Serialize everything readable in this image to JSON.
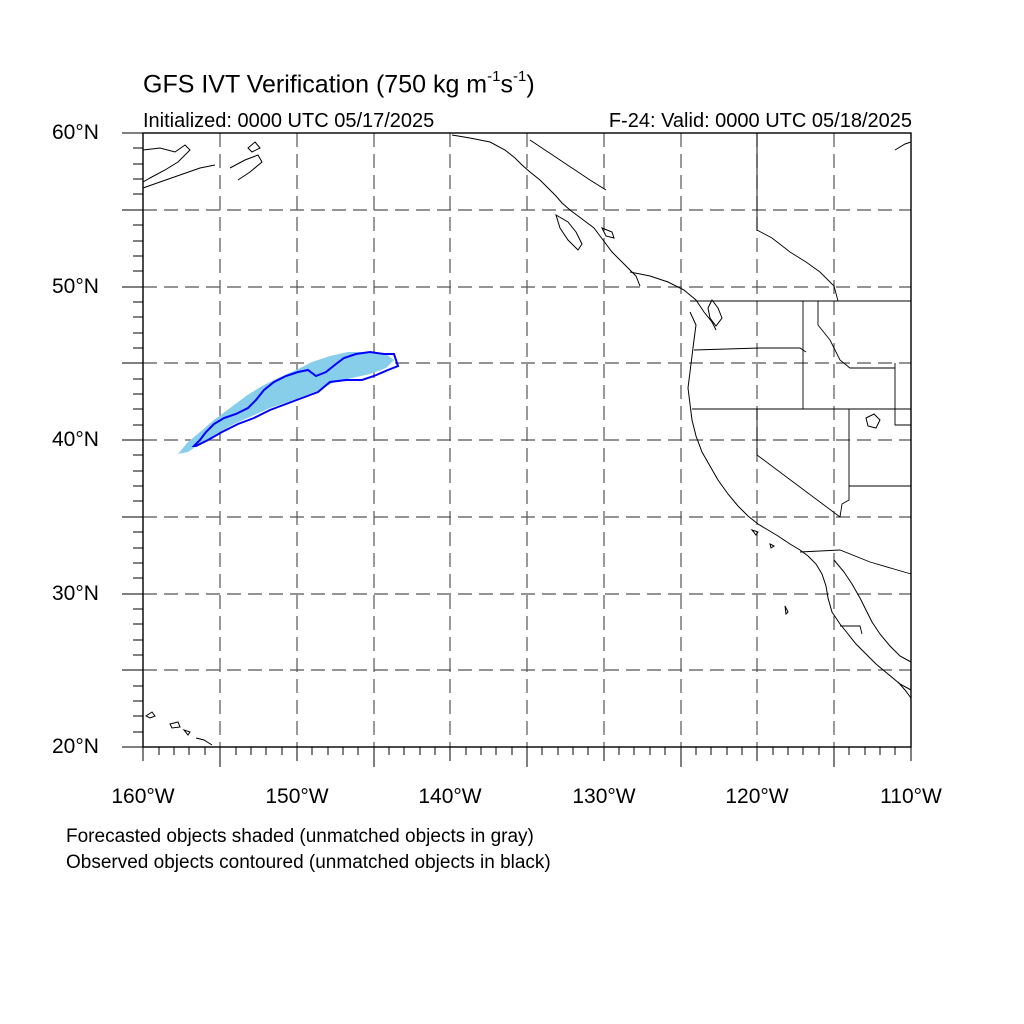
{
  "title": {
    "prefix": "GFS IVT Verification (750 kg m",
    "exp1": "-1",
    "mid": "s",
    "exp2": "-1",
    "suffix": ")"
  },
  "initialized": "Initialized: 0000 UTC 05/17/2025",
  "valid": "F-24: Valid: 0000 UTC 05/18/2025",
  "lat_labels": [
    "60°N",
    "50°N",
    "40°N",
    "30°N",
    "20°N"
  ],
  "lon_labels": [
    "160°W",
    "150°W",
    "140°W",
    "130°W",
    "120°W",
    "110°W"
  ],
  "notes": [
    "Forecasted objects shaded (unmatched objects in gray)",
    "Observed objects contoured (unmatched objects in black)"
  ],
  "colors": {
    "forecast_fill": "#87ceeb",
    "observed_contour": "#0000ff",
    "grid": "#555555",
    "coast": "#000000"
  },
  "map": {
    "projection": "cylindrical equidistant",
    "lon_range": [
      -160,
      -110
    ],
    "lat_range": [
      20,
      60
    ],
    "grid_step_deg": 5,
    "grid_style": "dashed"
  }
}
